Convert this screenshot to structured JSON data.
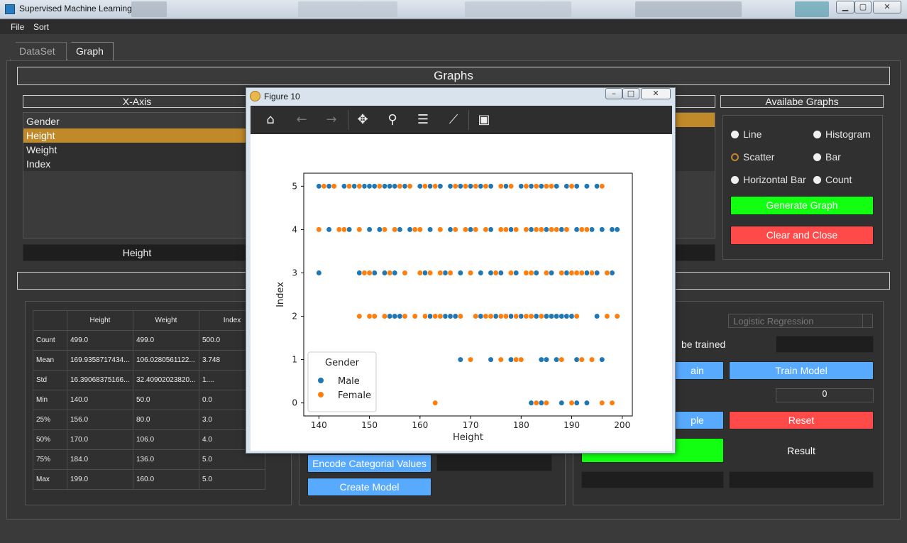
{
  "window": {
    "title": "Supervised Machine Learning"
  },
  "menu": [
    "File",
    "Sort"
  ],
  "tabs": [
    "DataSet",
    "Graph"
  ],
  "graphs_header": "Graphs",
  "xaxis": {
    "title": "X-Axis",
    "items": [
      "Gender",
      "Height",
      "Weight",
      "Index"
    ],
    "selected": "Height",
    "value": "Height"
  },
  "available": {
    "title": "Availabe Graphs",
    "options": [
      "Line",
      "Histogram",
      "Scatter",
      "Bar",
      "Horizontal Bar",
      "Count"
    ],
    "selected": "Scatter",
    "generate": "Generate Graph",
    "clear": "Clear and Close"
  },
  "stats": {
    "columns": [
      "Height",
      "Weight",
      "Index"
    ],
    "rows": [
      {
        "label": "Count",
        "values": [
          "499.0",
          "499.0",
          "500.0"
        ]
      },
      {
        "label": "Mean",
        "values": [
          "169.9358717434...",
          "106.0280561122...",
          "3.748"
        ]
      },
      {
        "label": "Std",
        "values": [
          "16.39068375166...",
          "32.40902023820...",
          "1...."
        ]
      },
      {
        "label": "Min",
        "values": [
          "140.0",
          "50.0",
          "0.0"
        ]
      },
      {
        "label": "25%",
        "values": [
          "156.0",
          "80.0",
          "3.0"
        ]
      },
      {
        "label": "50%",
        "values": [
          "170.0",
          "106.0",
          "4.0"
        ]
      },
      {
        "label": "75%",
        "values": [
          "184.0",
          "136.0",
          "5.0"
        ]
      },
      {
        "label": "Max",
        "values": [
          "199.0",
          "160.0",
          "5.0"
        ]
      }
    ]
  },
  "model": {
    "encode": "Encode Categorial Values",
    "create": "Create Model"
  },
  "right": {
    "algorithm": "Logistic Regression",
    "trained_label": "be trained",
    "train_partial": "ain",
    "train": "Train Model",
    "sample_partial": "ple",
    "reset": "Reset",
    "result": "Result",
    "spin_value": "0"
  },
  "figure": {
    "title": "Figure 10"
  },
  "chart_data": {
    "type": "scatter",
    "xlabel": "Height",
    "ylabel": "Index",
    "xlim": [
      137,
      202
    ],
    "ylim": [
      -0.3,
      5.3
    ],
    "xticks": [
      140,
      150,
      160,
      170,
      180,
      190,
      200
    ],
    "yticks": [
      0,
      1,
      2,
      3,
      4,
      5
    ],
    "legend": {
      "title": "Gender",
      "placement": "lower-left"
    },
    "series": [
      {
        "name": "Male",
        "color": "#1f77b4",
        "points": [
          [
            140,
            5
          ],
          [
            142,
            5
          ],
          [
            145,
            5
          ],
          [
            147,
            5
          ],
          [
            149,
            5
          ],
          [
            150,
            5
          ],
          [
            151,
            5
          ],
          [
            153,
            5
          ],
          [
            154,
            5
          ],
          [
            155,
            5
          ],
          [
            157,
            5
          ],
          [
            160,
            5
          ],
          [
            162,
            5
          ],
          [
            164,
            5
          ],
          [
            166,
            5
          ],
          [
            168,
            5
          ],
          [
            170,
            5
          ],
          [
            172,
            5
          ],
          [
            174,
            5
          ],
          [
            177,
            5
          ],
          [
            180,
            5
          ],
          [
            182,
            5
          ],
          [
            184,
            5
          ],
          [
            187,
            5
          ],
          [
            189,
            5
          ],
          [
            191,
            5
          ],
          [
            193,
            5
          ],
          [
            195,
            5
          ],
          [
            142,
            4
          ],
          [
            146,
            4
          ],
          [
            150,
            4
          ],
          [
            152,
            4
          ],
          [
            156,
            4
          ],
          [
            158,
            4
          ],
          [
            162,
            4
          ],
          [
            166,
            4
          ],
          [
            170,
            4
          ],
          [
            174,
            4
          ],
          [
            178,
            4
          ],
          [
            182,
            4
          ],
          [
            185,
            4
          ],
          [
            188,
            4
          ],
          [
            191,
            4
          ],
          [
            194,
            4
          ],
          [
            196,
            4
          ],
          [
            198,
            4
          ],
          [
            199,
            4
          ],
          [
            140,
            3
          ],
          [
            148,
            3
          ],
          [
            151,
            3
          ],
          [
            153,
            3
          ],
          [
            155,
            3
          ],
          [
            161,
            3
          ],
          [
            165,
            3
          ],
          [
            168,
            3
          ],
          [
            172,
            3
          ],
          [
            174,
            3
          ],
          [
            176,
            3
          ],
          [
            179,
            3
          ],
          [
            183,
            3
          ],
          [
            186,
            3
          ],
          [
            189,
            3
          ],
          [
            193,
            3
          ],
          [
            195,
            3
          ],
          [
            198,
            3
          ],
          [
            154,
            2
          ],
          [
            155,
            2
          ],
          [
            156,
            2
          ],
          [
            162,
            2
          ],
          [
            165,
            2
          ],
          [
            166,
            2
          ],
          [
            167,
            2
          ],
          [
            172,
            2
          ],
          [
            175,
            2
          ],
          [
            178,
            2
          ],
          [
            180,
            2
          ],
          [
            183,
            2
          ],
          [
            185,
            2
          ],
          [
            186,
            2
          ],
          [
            187,
            2
          ],
          [
            188,
            2
          ],
          [
            189,
            2
          ],
          [
            190,
            2
          ],
          [
            195,
            2
          ],
          [
            168,
            1
          ],
          [
            174,
            1
          ],
          [
            178,
            1
          ],
          [
            184,
            1
          ],
          [
            185,
            1
          ],
          [
            187,
            1
          ],
          [
            191,
            1
          ],
          [
            194,
            1
          ],
          [
            196,
            1
          ],
          [
            182,
            0
          ],
          [
            183,
            0
          ],
          [
            184,
            0
          ],
          [
            188,
            0
          ],
          [
            190,
            0
          ],
          [
            191,
            0
          ],
          [
            193,
            0
          ]
        ]
      },
      {
        "name": "Female",
        "color": "#ff7f0e",
        "points": [
          [
            141,
            5
          ],
          [
            143,
            5
          ],
          [
            146,
            5
          ],
          [
            148,
            5
          ],
          [
            152,
            5
          ],
          [
            156,
            5
          ],
          [
            158,
            5
          ],
          [
            161,
            5
          ],
          [
            163,
            5
          ],
          [
            167,
            5
          ],
          [
            169,
            5
          ],
          [
            171,
            5
          ],
          [
            173,
            5
          ],
          [
            176,
            5
          ],
          [
            178,
            5
          ],
          [
            181,
            5
          ],
          [
            183,
            5
          ],
          [
            185,
            5
          ],
          [
            186,
            5
          ],
          [
            190,
            5
          ],
          [
            196,
            5
          ],
          [
            140,
            4
          ],
          [
            144,
            4
          ],
          [
            145,
            4
          ],
          [
            148,
            4
          ],
          [
            153,
            4
          ],
          [
            155,
            4
          ],
          [
            159,
            4
          ],
          [
            160,
            4
          ],
          [
            164,
            4
          ],
          [
            167,
            4
          ],
          [
            169,
            4
          ],
          [
            171,
            4
          ],
          [
            173,
            4
          ],
          [
            176,
            4
          ],
          [
            177,
            4
          ],
          [
            179,
            4
          ],
          [
            181,
            4
          ],
          [
            183,
            4
          ],
          [
            184,
            4
          ],
          [
            186,
            4
          ],
          [
            187,
            4
          ],
          [
            189,
            4
          ],
          [
            192,
            4
          ],
          [
            193,
            4
          ],
          [
            149,
            3
          ],
          [
            150,
            3
          ],
          [
            154,
            3
          ],
          [
            157,
            3
          ],
          [
            160,
            3
          ],
          [
            162,
            3
          ],
          [
            164,
            3
          ],
          [
            166,
            3
          ],
          [
            170,
            3
          ],
          [
            175,
            3
          ],
          [
            178,
            3
          ],
          [
            181,
            3
          ],
          [
            182,
            3
          ],
          [
            185,
            3
          ],
          [
            188,
            3
          ],
          [
            190,
            3
          ],
          [
            191,
            3
          ],
          [
            192,
            3
          ],
          [
            194,
            3
          ],
          [
            197,
            3
          ],
          [
            148,
            2
          ],
          [
            150,
            2
          ],
          [
            151,
            2
          ],
          [
            153,
            2
          ],
          [
            157,
            2
          ],
          [
            159,
            2
          ],
          [
            161,
            2
          ],
          [
            163,
            2
          ],
          [
            164,
            2
          ],
          [
            168,
            2
          ],
          [
            171,
            2
          ],
          [
            173,
            2
          ],
          [
            174,
            2
          ],
          [
            176,
            2
          ],
          [
            177,
            2
          ],
          [
            179,
            2
          ],
          [
            181,
            2
          ],
          [
            182,
            2
          ],
          [
            184,
            2
          ],
          [
            191,
            2
          ],
          [
            197,
            2
          ],
          [
            199,
            2
          ],
          [
            170,
            1
          ],
          [
            176,
            1
          ],
          [
            179,
            1
          ],
          [
            180,
            1
          ],
          [
            188,
            1
          ],
          [
            192,
            1
          ],
          [
            194,
            1
          ],
          [
            163,
            0
          ],
          [
            183,
            0
          ],
          [
            185,
            0
          ],
          [
            190,
            0
          ],
          [
            196,
            0
          ],
          [
            198,
            0
          ]
        ]
      }
    ]
  }
}
